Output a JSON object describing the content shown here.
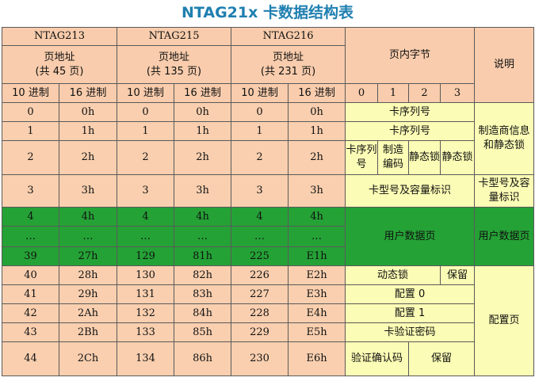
{
  "title": "NTAG21x 卡数据结构表",
  "header": {
    "chips": [
      {
        "name": "NTAG213",
        "page_addr": "页地址",
        "count": "(共 45 页)"
      },
      {
        "name": "NTAG215",
        "page_addr": "页地址",
        "count": "(共 135 页)"
      },
      {
        "name": "NTAG216",
        "page_addr": "页地址",
        "count": "(共 231 页)"
      }
    ],
    "bytes_label": "页内字节",
    "desc_label": "说明",
    "dec_label": "10 进制",
    "hex_label": "16 进制",
    "byte_indices": [
      "0",
      "1",
      "2",
      "3"
    ]
  },
  "rows": [
    {
      "cells": [
        "0",
        "0h",
        "0",
        "0h",
        "0",
        "0h"
      ]
    },
    {
      "cells": [
        "1",
        "1h",
        "1",
        "1h",
        "1",
        "1h"
      ]
    },
    {
      "cells": [
        "2",
        "2h",
        "2",
        "2h",
        "2",
        "2h"
      ]
    },
    {
      "cells": [
        "3",
        "3h",
        "3",
        "3h",
        "3",
        "3h"
      ]
    },
    {
      "cells": [
        "4",
        "4h",
        "4",
        "4h",
        "4",
        "4h"
      ]
    },
    {
      "cells": [
        "…",
        "…",
        "…",
        "…",
        "…",
        "…"
      ]
    },
    {
      "cells": [
        "39",
        "27h",
        "129",
        "81h",
        "225",
        "E1h"
      ]
    },
    {
      "cells": [
        "40",
        "28h",
        "130",
        "82h",
        "226",
        "E2h"
      ]
    },
    {
      "cells": [
        "41",
        "29h",
        "131",
        "83h",
        "227",
        "E3h"
      ]
    },
    {
      "cells": [
        "42",
        "2Ah",
        "132",
        "84h",
        "228",
        "E4h"
      ]
    },
    {
      "cells": [
        "43",
        "2Bh",
        "133",
        "85h",
        "229",
        "E5h"
      ]
    },
    {
      "cells": [
        "44",
        "2Ch",
        "134",
        "86h",
        "230",
        "E6h"
      ]
    }
  ],
  "content": {
    "serial1": "卡序列号",
    "serial2": "卡序列号",
    "row2_b0": "卡序列号",
    "row2_b1": "制造编码",
    "row2_b2": "静态锁",
    "row2_b3": "静态锁",
    "row3": "卡型号及容量标识",
    "user_data": "用户数据页",
    "dynamic_lock": "动态锁",
    "reserved1": "保留",
    "config0": "配置 0",
    "config1": "配置 1",
    "password": "卡验证密码",
    "pack": "验证确认码",
    "reserved2": "保留"
  },
  "desc": {
    "mfr": "制造商信息和静态锁",
    "cap": "卡型号及容量标识",
    "user": "用户数据页",
    "config": "配置页"
  },
  "colors": {
    "title": "#1f7fb0",
    "header_bg": "#f8ccac",
    "row_bg": "#f9cfaf",
    "yellow": "#fbfcb5",
    "green": "#25a236"
  }
}
